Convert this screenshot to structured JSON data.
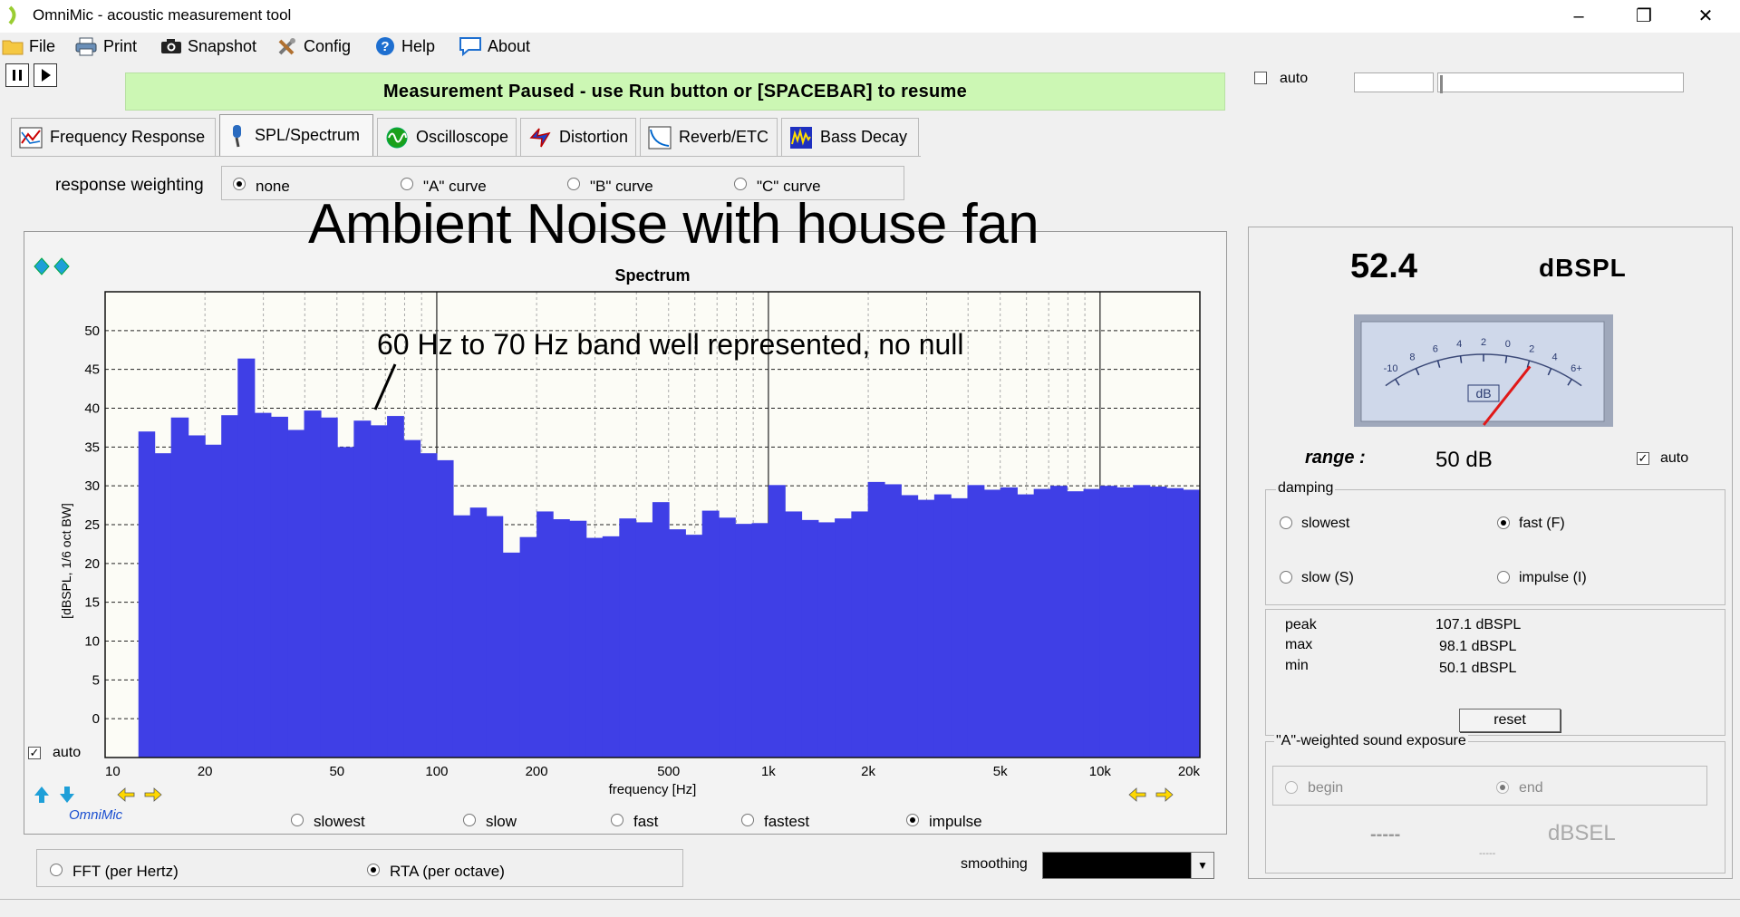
{
  "window": {
    "title": "OmniMic - acoustic measurement tool"
  },
  "menu": {
    "file": "File",
    "print": "Print",
    "snapshot": "Snapshot",
    "config": "Config",
    "help": "Help",
    "about": "About"
  },
  "status_banner": "Measurement Paused - use Run button or [SPACEBAR] to resume",
  "top_auto": {
    "label": "auto",
    "checked": false
  },
  "tabs": [
    {
      "label": "Frequency Response",
      "active": false
    },
    {
      "label": "SPL/Spectrum",
      "active": true
    },
    {
      "label": "Oscilloscope",
      "active": false
    },
    {
      "label": "Distortion",
      "active": false
    },
    {
      "label": "Reverb/ETC",
      "active": false
    },
    {
      "label": "Bass Decay",
      "active": false
    }
  ],
  "weighting": {
    "label": "response weighting",
    "options": [
      "none",
      "\"A\" curve",
      "\"B\" curve",
      "\"C\" curve"
    ],
    "selected": "none"
  },
  "overlay_title": "Ambient Noise with house fan",
  "annotation": "60 Hz to 70 Hz band well represented, no null",
  "chart_auto": "auto",
  "brand": "OmniMic",
  "chart_data": {
    "type": "bar",
    "title": "Spectrum",
    "xlabel": "frequency [Hz]",
    "ylabel": "[dBSPL, 1/6 oct BW]",
    "x_scale": "log",
    "xlim": [
      10,
      20000
    ],
    "ylim": [
      -5,
      55
    ],
    "yticks": [
      0,
      5,
      10,
      15,
      20,
      25,
      30,
      35,
      40,
      45,
      50
    ],
    "xtick_labels": [
      "10",
      "20",
      "50",
      "100",
      "200",
      "500",
      "1k",
      "2k",
      "5k",
      "10k",
      "20k"
    ],
    "xtick_values": [
      10,
      20,
      50,
      100,
      200,
      500,
      1000,
      2000,
      5000,
      10000,
      20000
    ],
    "bar_color": "#3f3fe6",
    "grid": true,
    "bands": [
      {
        "f1": 12.6,
        "f2": 14.1,
        "value": 37
      },
      {
        "f1": 14.1,
        "f2": 15.8,
        "value": 34.2
      },
      {
        "f1": 15.8,
        "f2": 17.8,
        "value": 38.8
      },
      {
        "f1": 17.8,
        "f2": 20.0,
        "value": 36.5
      },
      {
        "f1": 20.0,
        "f2": 22.4,
        "value": 35.3
      },
      {
        "f1": 22.4,
        "f2": 25.1,
        "value": 39.1
      },
      {
        "f1": 25.1,
        "f2": 28.2,
        "value": 46.4
      },
      {
        "f1": 28.2,
        "f2": 31.6,
        "value": 39.4
      },
      {
        "f1": 31.6,
        "f2": 35.5,
        "value": 38.9
      },
      {
        "f1": 35.5,
        "f2": 39.8,
        "value": 37.2
      },
      {
        "f1": 39.8,
        "f2": 44.7,
        "value": 39.7
      },
      {
        "f1": 44.7,
        "f2": 50.1,
        "value": 38.8
      },
      {
        "f1": 50.1,
        "f2": 56.2,
        "value": 35.0
      },
      {
        "f1": 56.2,
        "f2": 63.1,
        "value": 38.4
      },
      {
        "f1": 63.1,
        "f2": 70.8,
        "value": 37.8
      },
      {
        "f1": 70.8,
        "f2": 79.4,
        "value": 39.0
      },
      {
        "f1": 79.4,
        "f2": 89.1,
        "value": 35.9
      },
      {
        "f1": 89.1,
        "f2": 100,
        "value": 34.2
      },
      {
        "f1": 100,
        "f2": 112,
        "value": 33.3
      },
      {
        "f1": 112,
        "f2": 126,
        "value": 26.2
      },
      {
        "f1": 126,
        "f2": 141,
        "value": 27.2
      },
      {
        "f1": 141,
        "f2": 158,
        "value": 26.1
      },
      {
        "f1": 158,
        "f2": 178,
        "value": 21.4
      },
      {
        "f1": 178,
        "f2": 200,
        "value": 23.4
      },
      {
        "f1": 200,
        "f2": 224,
        "value": 26.7
      },
      {
        "f1": 224,
        "f2": 251,
        "value": 25.7
      },
      {
        "f1": 251,
        "f2": 282,
        "value": 25.5
      },
      {
        "f1": 282,
        "f2": 316,
        "value": 23.3
      },
      {
        "f1": 316,
        "f2": 355,
        "value": 23.5
      },
      {
        "f1": 355,
        "f2": 398,
        "value": 25.8
      },
      {
        "f1": 398,
        "f2": 447,
        "value": 25.3
      },
      {
        "f1": 447,
        "f2": 501,
        "value": 27.9
      },
      {
        "f1": 501,
        "f2": 562,
        "value": 24.4
      },
      {
        "f1": 562,
        "f2": 631,
        "value": 23.7
      },
      {
        "f1": 631,
        "f2": 708,
        "value": 26.8
      },
      {
        "f1": 708,
        "f2": 794,
        "value": 25.9
      },
      {
        "f1": 794,
        "f2": 891,
        "value": 25.1
      },
      {
        "f1": 891,
        "f2": 1000,
        "value": 25.2
      },
      {
        "f1": 1000,
        "f2": 1122,
        "value": 30.1
      },
      {
        "f1": 1122,
        "f2": 1259,
        "value": 26.7
      },
      {
        "f1": 1259,
        "f2": 1413,
        "value": 25.6
      },
      {
        "f1": 1413,
        "f2": 1585,
        "value": 25.3
      },
      {
        "f1": 1585,
        "f2": 1778,
        "value": 25.8
      },
      {
        "f1": 1778,
        "f2": 1995,
        "value": 26.7
      },
      {
        "f1": 1995,
        "f2": 2239,
        "value": 30.5
      },
      {
        "f1": 2239,
        "f2": 2512,
        "value": 30.2
      },
      {
        "f1": 2512,
        "f2": 2818,
        "value": 28.8
      },
      {
        "f1": 2818,
        "f2": 3162,
        "value": 28.2
      },
      {
        "f1": 3162,
        "f2": 3548,
        "value": 28.9
      },
      {
        "f1": 3548,
        "f2": 3981,
        "value": 28.4
      },
      {
        "f1": 3981,
        "f2": 4467,
        "value": 30.1
      },
      {
        "f1": 4467,
        "f2": 5012,
        "value": 29.5
      },
      {
        "f1": 5012,
        "f2": 5623,
        "value": 29.8
      },
      {
        "f1": 5623,
        "f2": 6310,
        "value": 28.9
      },
      {
        "f1": 6310,
        "f2": 7079,
        "value": 29.6
      },
      {
        "f1": 7079,
        "f2": 7943,
        "value": 30.0
      },
      {
        "f1": 7943,
        "f2": 8913,
        "value": 29.3
      },
      {
        "f1": 8913,
        "f2": 10000,
        "value": 29.6
      },
      {
        "f1": 10000,
        "f2": 11220,
        "value": 30.0
      },
      {
        "f1": 11220,
        "f2": 12589,
        "value": 29.8
      },
      {
        "f1": 12589,
        "f2": 14125,
        "value": 30.1
      },
      {
        "f1": 14125,
        "f2": 15849,
        "value": 29.9
      },
      {
        "f1": 15849,
        "f2": 17783,
        "value": 29.7
      },
      {
        "f1": 17783,
        "f2": 20000,
        "value": 29.5
      }
    ]
  },
  "speed": {
    "options": [
      "slowest",
      "slow",
      "fast",
      "fastest",
      "impulse"
    ],
    "selected": "impulse"
  },
  "analysis_mode": {
    "options": [
      "FFT (per Hertz)",
      "RTA (per octave)"
    ],
    "selected": "RTA (per octave)"
  },
  "smoothing": {
    "label": "smoothing",
    "value": ""
  },
  "meter": {
    "spl_value": "52.4",
    "spl_unit": "dBSPL",
    "dial_scale": [
      "-10",
      "8",
      "6",
      "4",
      "2",
      "0",
      "2",
      "4",
      "6+"
    ],
    "dial_label": "dB",
    "needle_db": 2.2,
    "range_label": "range :",
    "range_value": "50 dB",
    "range_auto": {
      "label": "auto",
      "checked": true
    }
  },
  "damping": {
    "label": "damping",
    "options": [
      "slowest",
      "fast (F)",
      "slow (S)",
      "impulse (I)"
    ],
    "selected": "fast (F)"
  },
  "stats": [
    {
      "label": "peak",
      "value": "107.1 dBSPL"
    },
    {
      "label": "max",
      "value": "98.1 dBSPL"
    },
    {
      "label": "min",
      "value": "50.1 dBSPL"
    }
  ],
  "reset_label": "reset",
  "sound_exposure": {
    "label": "\"A\"-weighted sound exposure",
    "begin": "begin",
    "end": "end",
    "value": "-----",
    "unit": "dBSEL",
    "sub": "-----"
  }
}
